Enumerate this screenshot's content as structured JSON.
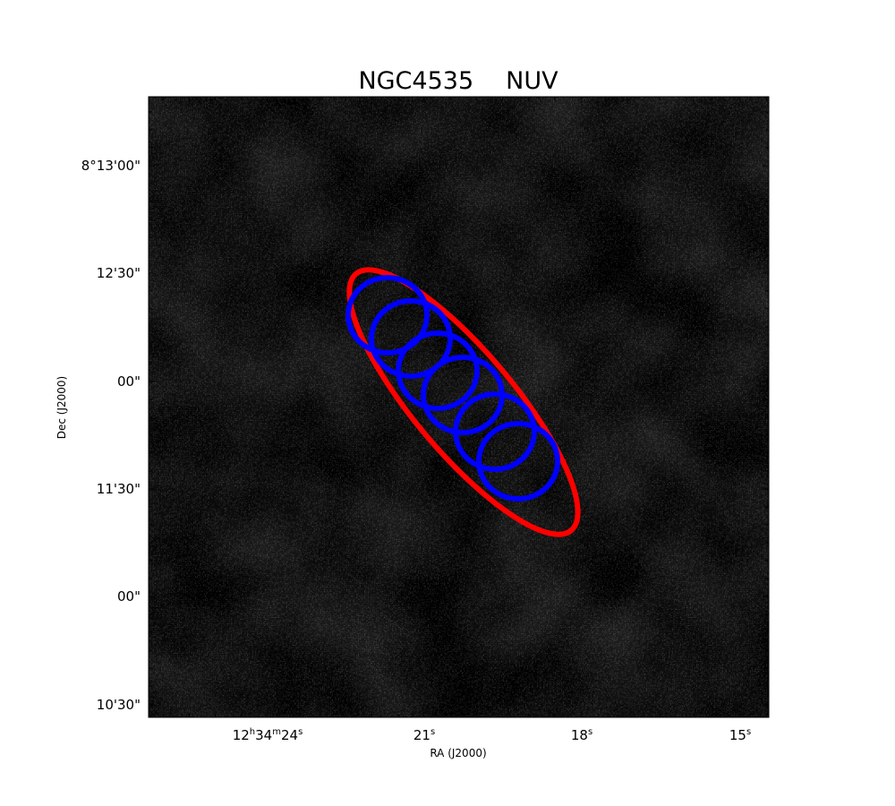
{
  "figure": {
    "object_name": "NGC4535",
    "band": "NUV",
    "xlabel": "RA (J2000)",
    "ylabel": "Dec (J2000)"
  },
  "chart_data": {
    "type": "sky-image",
    "colormap": "grayscale",
    "x_ticks": [
      {
        "hms": [
          "12",
          "h",
          "34",
          "m",
          "24",
          "s"
        ]
      },
      {
        "hms": [
          "",
          "",
          "",
          "",
          "21",
          "s"
        ]
      },
      {
        "hms": [
          "",
          "",
          "",
          "",
          "18",
          "s"
        ]
      },
      {
        "hms": [
          "",
          "",
          "",
          "",
          "15",
          "s"
        ]
      }
    ],
    "y_ticks": [
      {
        "label": "8°13'00\""
      },
      {
        "label": "12'30\""
      },
      {
        "label": "00\""
      },
      {
        "label": "11'30\""
      },
      {
        "label": "00\""
      },
      {
        "label": "10'30\""
      }
    ],
    "ellipse": {
      "color": "#ff0000",
      "shape": "ellipse"
    },
    "apertures": {
      "color": "#0000ff",
      "count": 6,
      "shape": "circle"
    }
  }
}
